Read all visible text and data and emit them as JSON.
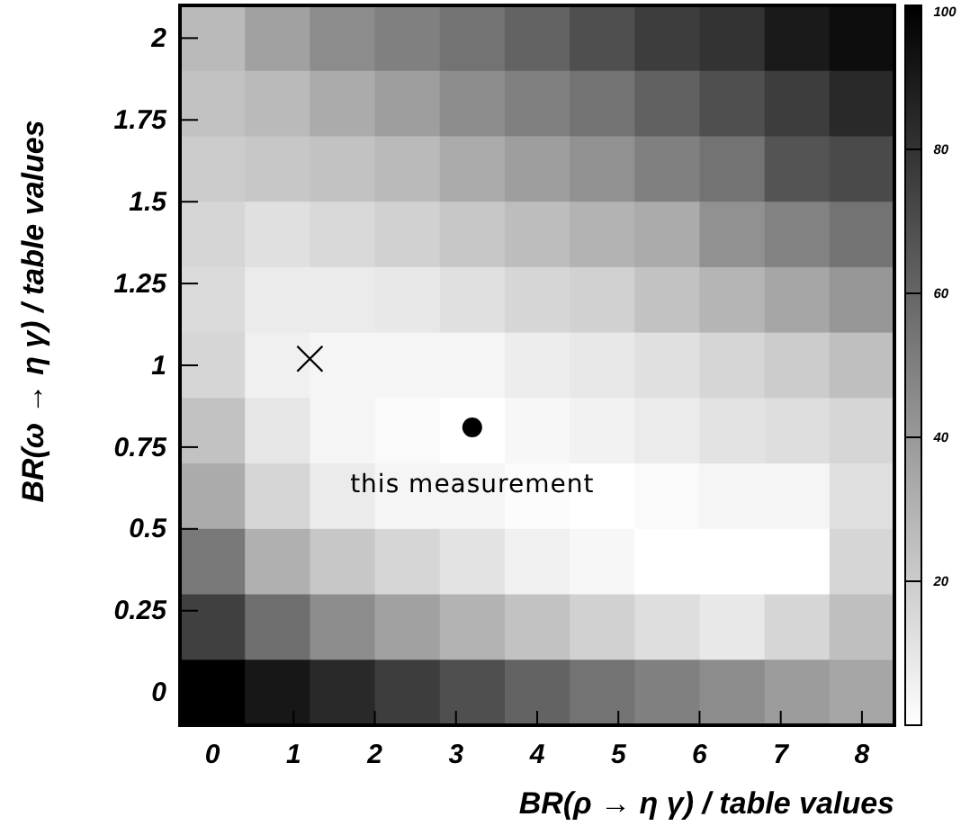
{
  "chart_data": {
    "type": "heatmap",
    "xlabel": "BR(ρ → η γ) / table values",
    "ylabel": "BR(ω → η γ) / table values",
    "x": [
      0,
      0.8,
      1.6,
      2.4,
      3.2,
      4,
      4.8,
      5.6,
      6.4,
      7.2,
      8
    ],
    "xlim": [
      -0.4,
      8.4
    ],
    "xticks": [
      0,
      1,
      2,
      3,
      4,
      5,
      6,
      7,
      8
    ],
    "ylim": [
      -0.1,
      2.1
    ],
    "yticks": [
      0,
      0.25,
      0.5,
      0.75,
      1,
      1.25,
      1.5,
      1.75,
      2
    ],
    "clim": [
      0,
      100
    ],
    "cticks": [
      20,
      40,
      60,
      80,
      100
    ],
    "cells": [
      [
        27,
        37,
        45,
        50,
        55,
        61,
        69,
        76,
        80,
        90,
        95
      ],
      [
        24,
        27,
        33,
        38,
        45,
        50,
        55,
        62,
        69,
        76,
        84
      ],
      [
        20,
        22,
        24,
        27,
        33,
        38,
        43,
        50,
        55,
        67,
        71
      ],
      [
        16,
        12,
        15,
        18,
        22,
        26,
        30,
        33,
        43,
        49,
        55
      ],
      [
        14,
        8,
        8,
        9,
        12,
        16,
        18,
        24,
        29,
        35,
        41
      ],
      [
        16,
        6,
        4,
        4,
        4,
        7,
        9,
        12,
        16,
        20,
        25
      ],
      [
        24,
        10,
        4,
        2,
        0,
        3,
        5,
        8,
        11,
        13,
        16
      ],
      [
        33,
        16,
        8,
        4,
        4,
        1,
        0,
        2,
        4,
        4,
        12
      ],
      [
        53,
        31,
        22,
        16,
        11,
        6,
        3,
        0,
        0,
        0,
        16
      ],
      [
        75,
        57,
        45,
        37,
        30,
        24,
        18,
        13,
        9,
        16,
        25
      ],
      [
        100,
        91,
        84,
        76,
        69,
        61,
        55,
        50,
        45,
        39,
        35
      ]
    ],
    "series": [
      {
        "type": "scatter",
        "x": [
          3.2
        ],
        "values": [
          0.81
        ],
        "color": "#000000",
        "marker": "circle"
      },
      {
        "type": "scatter",
        "x": [
          1.2
        ],
        "values": [
          1.02
        ],
        "color": "#000000",
        "marker": "cross"
      }
    ],
    "annotations": [
      "this measurement"
    ]
  }
}
